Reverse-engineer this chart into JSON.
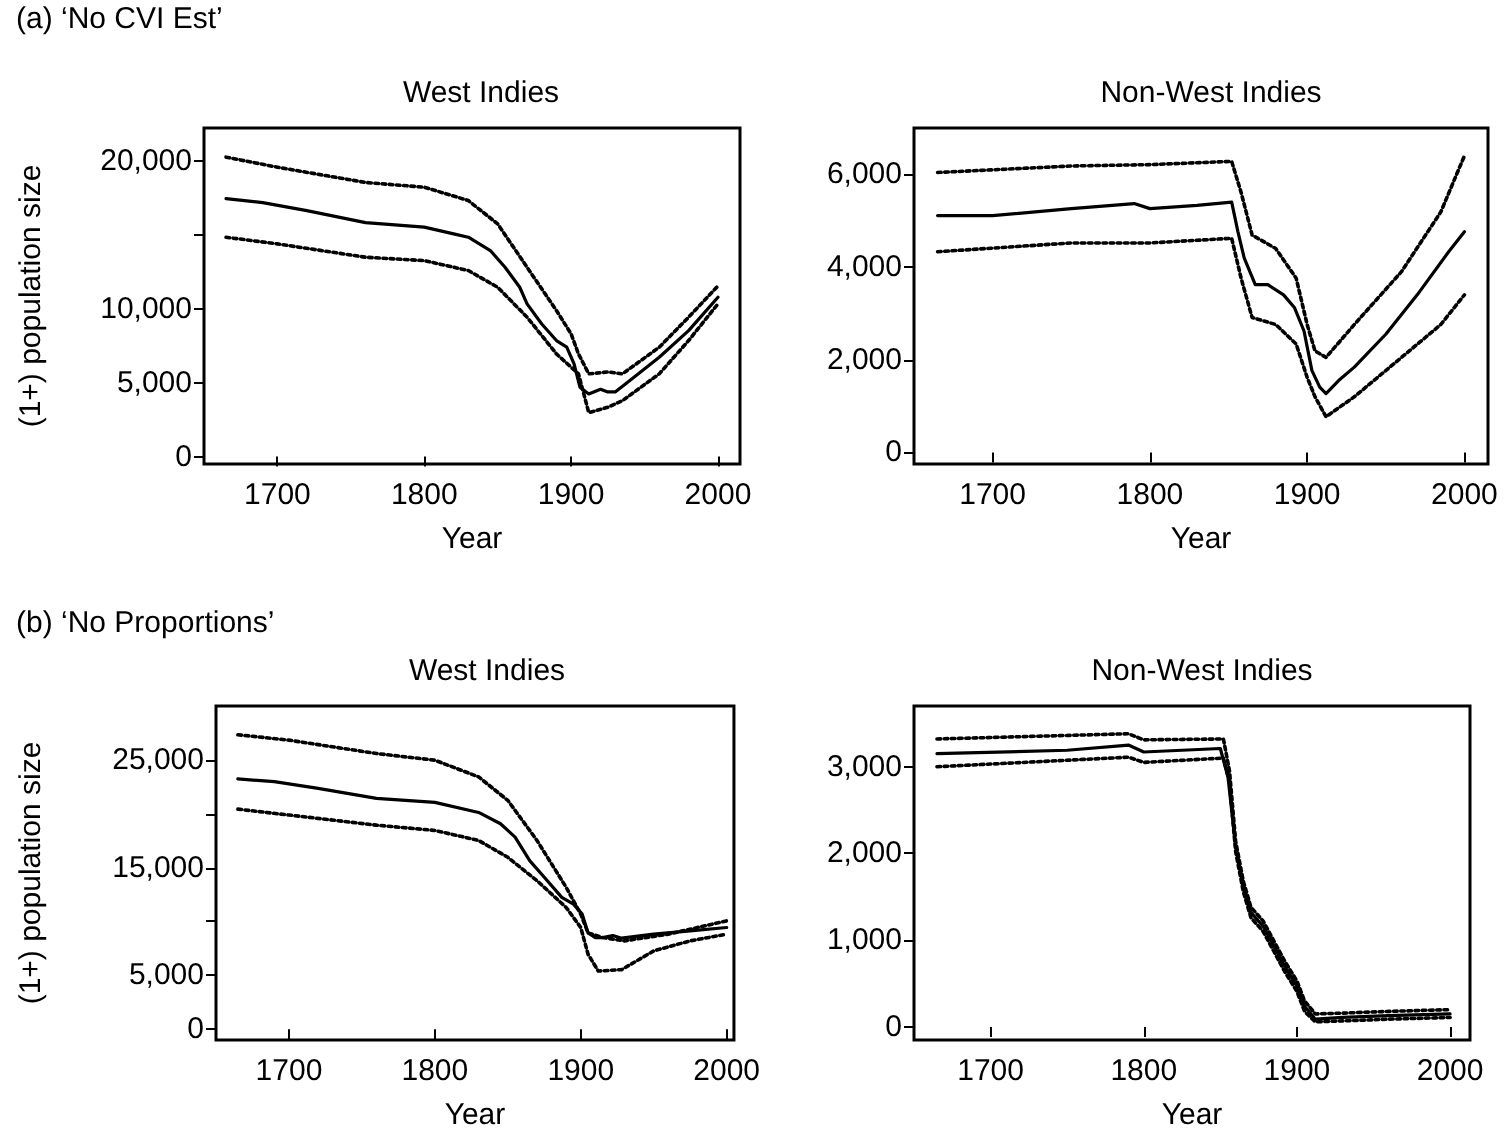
{
  "chart_data": [
    {
      "type": "line",
      "title": "West Indies",
      "xlabel": "Year",
      "ylabel": "(1+) population size",
      "annotations": [
        "(a) ‘No CVI Est’"
      ],
      "marker": "none",
      "xlim": [
        1650,
        2015
      ],
      "xticks": [
        1700,
        1800,
        1900,
        2000
      ],
      "ylim": [
        -500,
        22200
      ],
      "yticks": [
        {
          "value": 0,
          "label": "0"
        },
        {
          "value": 5000,
          "label": "5,000"
        },
        {
          "value": 10000,
          "label": "10,000"
        },
        {
          "value": 15000,
          "label": null
        },
        {
          "value": 20000,
          "label": "20,000"
        }
      ],
      "series": [
        {
          "color": "#000000",
          "line_style": "solid",
          "x": [
            1665,
            1690,
            1720,
            1760,
            1800,
            1820,
            1830,
            1845,
            1855,
            1865,
            1870,
            1880,
            1890,
            1897,
            1902,
            1906,
            1912,
            1920,
            1925,
            1930,
            1940,
            1960,
            1980,
            2000
          ],
          "values": [
            17430,
            17160,
            16620,
            15810,
            15500,
            15050,
            14820,
            13920,
            12790,
            11440,
            10320,
            8960,
            7840,
            7390,
            6260,
            4690,
            4230,
            4550,
            4370,
            4370,
            5140,
            6710,
            8510,
            10770
          ]
        },
        {
          "color": "#000000",
          "line_style": "dotted",
          "x": [
            1665,
            1700,
            1760,
            1800,
            1830,
            1850,
            1870,
            1890,
            1900,
            1905,
            1912,
            1925,
            1935,
            1960,
            1980,
            2000
          ],
          "values": [
            20230,
            19550,
            18520,
            18200,
            17300,
            15720,
            12790,
            9870,
            8290,
            6940,
            5590,
            5720,
            5590,
            7390,
            9420,
            11530
          ]
        },
        {
          "color": "#000000",
          "line_style": "dotted",
          "x": [
            1665,
            1700,
            1760,
            1800,
            1830,
            1850,
            1870,
            1890,
            1905,
            1912,
            1925,
            1935,
            1960,
            1980,
            2000
          ],
          "values": [
            14820,
            14370,
            13470,
            13240,
            12570,
            11440,
            9420,
            6940,
            5590,
            2970,
            3330,
            3780,
            5590,
            7840,
            10320
          ]
        }
      ]
    },
    {
      "type": "line",
      "title": "Non-West Indies",
      "xlabel": "Year",
      "marker": "none",
      "xlim": [
        1650,
        2015
      ],
      "xticks": [
        1700,
        1800,
        1900,
        2000
      ],
      "ylim": [
        -250,
        7000
      ],
      "yticks": [
        {
          "value": 0,
          "label": "0"
        },
        {
          "value": 2000,
          "label": "2,000"
        },
        {
          "value": 4000,
          "label": "4,000"
        },
        {
          "value": 6000,
          "label": "6,000"
        }
      ],
      "series": [
        {
          "color": "#000000",
          "line_style": "solid",
          "x": [
            1665,
            1700,
            1750,
            1790,
            1800,
            1830,
            1852,
            1856,
            1860,
            1867,
            1875,
            1885,
            1892,
            1898,
            1903,
            1908,
            1912,
            1920,
            1930,
            1950,
            1970,
            1990,
            2000
          ],
          "values": [
            5110,
            5110,
            5260,
            5370,
            5260,
            5330,
            5400,
            4760,
            4190,
            3620,
            3620,
            3400,
            3120,
            2620,
            1770,
            1410,
            1270,
            1550,
            1840,
            2550,
            3400,
            4330,
            4760
          ]
        },
        {
          "color": "#000000",
          "line_style": "dotted",
          "x": [
            1665,
            1750,
            1800,
            1852,
            1858,
            1865,
            1880,
            1893,
            1900,
            1905,
            1912,
            1930,
            1960,
            1985,
            2000
          ],
          "values": [
            6040,
            6180,
            6210,
            6280,
            5610,
            4690,
            4400,
            3760,
            2760,
            2190,
            2050,
            2760,
            3900,
            5190,
            6400
          ]
        },
        {
          "color": "#000000",
          "line_style": "dotted",
          "x": [
            1665,
            1750,
            1800,
            1852,
            1858,
            1865,
            1880,
            1893,
            1900,
            1905,
            1912,
            1930,
            1960,
            1985,
            2000
          ],
          "values": [
            4330,
            4520,
            4520,
            4620,
            3760,
            2910,
            2760,
            2340,
            1620,
            1200,
            770,
            1200,
            2050,
            2760,
            3400
          ]
        }
      ]
    },
    {
      "type": "line",
      "title": "West Indies",
      "xlabel": "Year",
      "ylabel": "(1+) population size",
      "annotations": [
        "(b) ‘No Proportions’"
      ],
      "marker": "none",
      "xlim": [
        1650,
        2005
      ],
      "xticks": [
        1700,
        1800,
        1900,
        2000
      ],
      "ylim": [
        -1000,
        30000
      ],
      "yticks": [
        {
          "value": 0,
          "label": "0"
        },
        {
          "value": 5000,
          "label": "5,000"
        },
        {
          "value": 10000,
          "label": null
        },
        {
          "value": 15000,
          "label": "15,000"
        },
        {
          "value": 20000,
          "label": null
        },
        {
          "value": 25000,
          "label": "25,000"
        }
      ],
      "series": [
        {
          "color": "#000000",
          "line_style": "solid",
          "x": [
            1665,
            1690,
            1720,
            1760,
            1800,
            1830,
            1845,
            1855,
            1865,
            1875,
            1887,
            1895,
            1901,
            1905,
            1910,
            1915,
            1922,
            1928,
            1950,
            1975,
            2000
          ],
          "values": [
            23230,
            22980,
            22360,
            21430,
            21060,
            20120,
            19070,
            17830,
            15650,
            14100,
            12240,
            11610,
            10680,
            8940,
            8510,
            8510,
            8700,
            8450,
            8820,
            9130,
            9440
          ]
        },
        {
          "color": "#000000",
          "line_style": "dotted",
          "x": [
            1665,
            1700,
            1760,
            1800,
            1830,
            1850,
            1870,
            1890,
            1900,
            1905,
            1915,
            1930,
            1960,
            2000
          ],
          "values": [
            27330,
            26830,
            25590,
            24970,
            23420,
            21240,
            17520,
            13170,
            10680,
            8940,
            8510,
            8200,
            8820,
            10060
          ]
        },
        {
          "color": "#000000",
          "line_style": "dotted",
          "x": [
            1665,
            1700,
            1760,
            1800,
            1830,
            1850,
            1870,
            1890,
            1900,
            1905,
            1912,
            1928,
            1950,
            1975,
            2000
          ],
          "values": [
            20430,
            19880,
            18940,
            18450,
            17520,
            15960,
            13790,
            11300,
            9440,
            6960,
            5400,
            5530,
            7270,
            8200,
            8820
          ]
        }
      ]
    },
    {
      "type": "line",
      "title": "Non-West Indies",
      "xlabel": "Year",
      "marker": "none",
      "xlim": [
        1650,
        2013
      ],
      "xticks": [
        1700,
        1800,
        1900,
        2000
      ],
      "ylim": [
        -150,
        3700
      ],
      "yticks": [
        {
          "value": 0,
          "label": "0"
        },
        {
          "value": 1000,
          "label": "1,000"
        },
        {
          "value": 2000,
          "label": "2,000"
        },
        {
          "value": 3000,
          "label": "3,000"
        }
      ],
      "series": [
        {
          "color": "#000000",
          "line_style": "solid",
          "x": [
            1665,
            1750,
            1790,
            1800,
            1850,
            1855,
            1860,
            1865,
            1870,
            1878,
            1885,
            1892,
            1900,
            1905,
            1912,
            1930,
            1960,
            2000
          ],
          "values": [
            3150,
            3190,
            3250,
            3170,
            3210,
            2880,
            2080,
            1620,
            1320,
            1160,
            930,
            700,
            470,
            240,
            90,
            110,
            130,
            150
          ]
        },
        {
          "color": "#000000",
          "line_style": "dotted",
          "x": [
            1665,
            1790,
            1800,
            1852,
            1856,
            1860,
            1865,
            1870,
            1878,
            1885,
            1892,
            1900,
            1905,
            1912,
            1930,
            1960,
            2000
          ],
          "values": [
            3320,
            3380,
            3310,
            3320,
            2950,
            2140,
            1680,
            1380,
            1220,
            990,
            760,
            530,
            300,
            150,
            160,
            180,
            200
          ]
        },
        {
          "color": "#000000",
          "line_style": "dotted",
          "x": [
            1665,
            1790,
            1800,
            1852,
            1856,
            1860,
            1865,
            1870,
            1878,
            1885,
            1892,
            1900,
            1905,
            1912,
            1930,
            1960,
            2000
          ],
          "values": [
            3000,
            3110,
            3050,
            3100,
            2820,
            2020,
            1560,
            1260,
            1100,
            870,
            640,
            410,
            180,
            60,
            70,
            90,
            110
          ]
        }
      ]
    }
  ]
}
